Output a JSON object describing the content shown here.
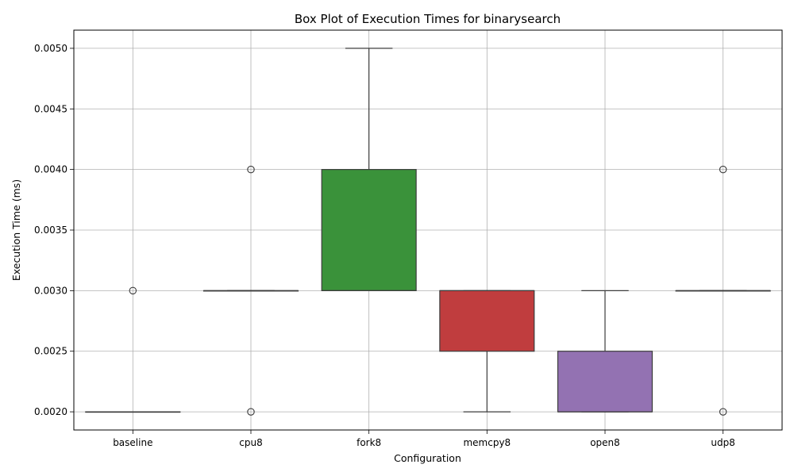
{
  "chart_data": {
    "type": "box",
    "title": "Box Plot of Execution Times for binarysearch",
    "xlabel": "Configuration",
    "ylabel": "Execution Time (ms)",
    "ylim": [
      0.00185,
      0.00515
    ],
    "yticks": [
      "0.0020",
      "0.0025",
      "0.0030",
      "0.0035",
      "0.0040",
      "0.0045",
      "0.0050"
    ],
    "ytick_values": [
      0.002,
      0.0025,
      0.003,
      0.0035,
      0.004,
      0.0045,
      0.005
    ],
    "grid": true,
    "categories": [
      "baseline",
      "cpu8",
      "fork8",
      "memcpy8",
      "open8",
      "udp8"
    ],
    "boxes": [
      {
        "name": "baseline",
        "color": "#1f77b4",
        "q1": 0.002,
        "median": 0.002,
        "q3": 0.002,
        "whisker_low": 0.002,
        "whisker_high": 0.002,
        "outliers": [
          0.003
        ]
      },
      {
        "name": "cpu8",
        "color": "#ff7f0e",
        "q1": 0.003,
        "median": 0.003,
        "q3": 0.003,
        "whisker_low": 0.003,
        "whisker_high": 0.003,
        "outliers": [
          0.004,
          0.002
        ]
      },
      {
        "name": "fork8",
        "color": "#3a923a",
        "q1": 0.003,
        "median": 0.003,
        "q3": 0.004,
        "whisker_low": 0.003,
        "whisker_high": 0.005,
        "outliers": []
      },
      {
        "name": "memcpy8",
        "color": "#c03d3e",
        "q1": 0.0025,
        "median": 0.003,
        "q3": 0.003,
        "whisker_low": 0.002,
        "whisker_high": 0.003,
        "outliers": []
      },
      {
        "name": "open8",
        "color": "#9372b2",
        "q1": 0.002,
        "median": 0.002,
        "q3": 0.0025,
        "whisker_low": 0.002,
        "whisker_high": 0.003,
        "outliers": []
      },
      {
        "name": "udp8",
        "color": "#8c564b",
        "q1": 0.003,
        "median": 0.003,
        "q3": 0.003,
        "whisker_low": 0.003,
        "whisker_high": 0.003,
        "outliers": [
          0.004,
          0.002
        ]
      }
    ]
  }
}
